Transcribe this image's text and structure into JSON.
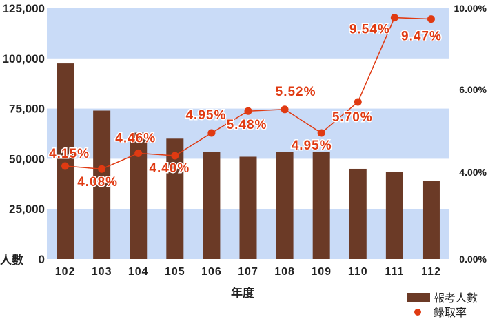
{
  "chart_data": {
    "type": "bar+line",
    "xlabel": "年度",
    "ylabel_left": "人數",
    "categories": [
      "102",
      "103",
      "104",
      "105",
      "106",
      "107",
      "108",
      "109",
      "110",
      "111",
      "112"
    ],
    "series": [
      {
        "name": "報考人數",
        "type": "bar",
        "axis": "left",
        "color": "#6b3a26",
        "values": [
          97500,
          74000,
          63000,
          60000,
          53500,
          51000,
          53500,
          53500,
          45000,
          43500,
          39000
        ]
      },
      {
        "name": "錄取率",
        "type": "line",
        "axis": "right",
        "color": "#e03a12",
        "values": [
          4.15,
          4.08,
          4.46,
          4.4,
          4.95,
          5.48,
          5.52,
          4.95,
          5.7,
          9.54,
          9.47
        ],
        "labels": [
          "4.15%",
          "4.08%",
          "4.46%",
          "4.40%",
          "4.95%",
          "5.48%",
          "5.52%",
          "4.95%",
          "5.70%",
          "9.54%",
          "9.47%"
        ]
      }
    ],
    "y_left": {
      "ticks": [
        0,
        25000,
        50000,
        75000,
        100000,
        125000
      ],
      "tick_labels": [
        "0",
        "25,000",
        "50,000",
        "75,000",
        "100,000",
        "125,000"
      ]
    },
    "y_right": {
      "scale": "piecewise",
      "ticks": [
        0,
        4,
        6,
        10
      ],
      "tick_labels": [
        "0.00%",
        "4.00%",
        "6.00%",
        "10.00%"
      ]
    },
    "grid": "alternating-horizontal-bands",
    "band_color": "#c9dbf7",
    "legend_position": "bottom-right"
  }
}
